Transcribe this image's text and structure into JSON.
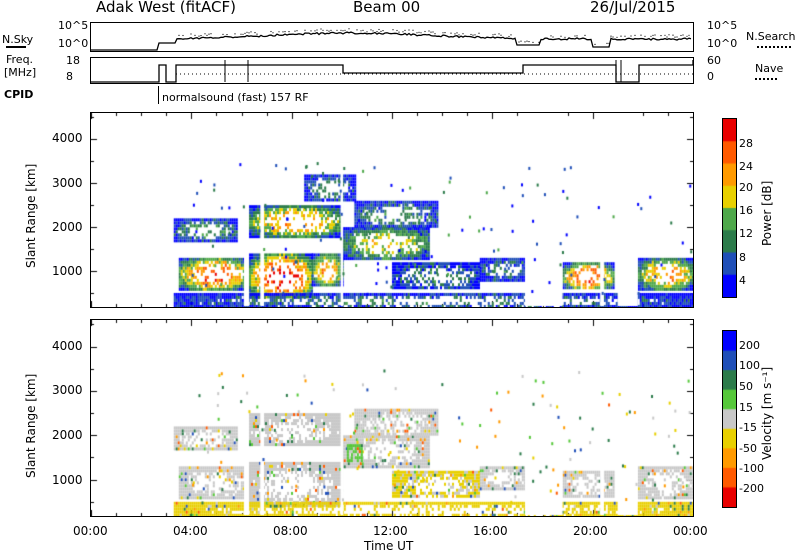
{
  "header": {
    "title": "Adak West (fitACF)",
    "beam": "Beam 00",
    "date": "26/Jul/2015"
  },
  "status_panels": {
    "nsky_label": "N.Sky",
    "nsky_ticks": [
      "10^5",
      "10^0"
    ],
    "nsearch_label": "N.Search",
    "nsearch_ticks": [
      "10^5",
      "10^0"
    ],
    "freq_label_1": "Freq.",
    "freq_label_2": "[MHz]",
    "freq_ticks": [
      "18",
      "8"
    ],
    "nave_label": "Nave",
    "nave_ticks": [
      "60",
      "0"
    ],
    "cpid_label": "CPID",
    "cpid_text": "normalsound (fast) 157 RF"
  },
  "chart_data": [
    {
      "type": "heatmap",
      "title": "",
      "xlabel": "Time UT",
      "ylabel": "Slant Range [km]",
      "x_ticks": [
        "00:00",
        "04:00",
        "08:00",
        "12:00",
        "16:00",
        "20:00",
        "00:00"
      ],
      "xlim": [
        0,
        24
      ],
      "y_ticks": [
        "1000",
        "2000",
        "3000",
        "4000"
      ],
      "ylim": [
        180,
        4600
      ],
      "colorbar": {
        "label": "Power [dB]",
        "ticks": [
          "4",
          "8",
          "12",
          "16",
          "20",
          "24",
          "28"
        ],
        "range": [
          0,
          32
        ],
        "colors": [
          "#0000ff",
          "#1f4fb8",
          "#2b7b4a",
          "#4ea84a",
          "#e8d000",
          "#ff9a00",
          "#ff5a00",
          "#e80000"
        ]
      },
      "blobs": [
        {
          "t0": 3.5,
          "t1": 6.3,
          "r0": 600,
          "r1": 1300,
          "v": 24
        },
        {
          "t0": 3.3,
          "t1": 5.8,
          "r0": 1700,
          "r1": 2200,
          "v": 10
        },
        {
          "t0": 6.3,
          "t1": 8.8,
          "r0": 400,
          "r1": 1400,
          "v": 26
        },
        {
          "t0": 8.8,
          "t1": 10.0,
          "r0": 700,
          "r1": 1400,
          "v": 20
        },
        {
          "t0": 6.3,
          "t1": 10.0,
          "r0": 1800,
          "r1": 2500,
          "v": 20
        },
        {
          "t0": 10.0,
          "t1": 13.5,
          "r0": 1300,
          "r1": 2000,
          "v": 16
        },
        {
          "t0": 10.5,
          "t1": 13.8,
          "r0": 2000,
          "r1": 2600,
          "v": 9
        },
        {
          "t0": 12.0,
          "t1": 15.5,
          "r0": 600,
          "r1": 1200,
          "v": 8
        },
        {
          "t0": 15.5,
          "t1": 17.3,
          "r0": 800,
          "r1": 1300,
          "v": 8
        },
        {
          "t0": 18.8,
          "t1": 20.8,
          "r0": 600,
          "r1": 1200,
          "v": 24
        },
        {
          "t0": 21.8,
          "t1": 24.0,
          "r0": 600,
          "r1": 1300,
          "v": 20
        },
        {
          "t0": 8.5,
          "t1": 10.5,
          "r0": 2600,
          "r1": 3200,
          "v": 8
        },
        {
          "t0": 3.3,
          "t1": 24.0,
          "r0": 180,
          "r1": 500,
          "v": 8
        }
      ]
    },
    {
      "type": "heatmap",
      "title": "",
      "xlabel": "Time UT",
      "ylabel": "Slant Range [km]",
      "x_ticks": [
        "00:00",
        "04:00",
        "08:00",
        "12:00",
        "16:00",
        "20:00",
        "00:00"
      ],
      "xlim": [
        0,
        24
      ],
      "y_ticks": [
        "1000",
        "2000",
        "3000",
        "4000"
      ],
      "ylim": [
        180,
        4600
      ],
      "colorbar": {
        "label": "Velocity [m s⁻¹]",
        "ticks": [
          "200",
          "100",
          "50",
          "15",
          "-15",
          "-50",
          "-100",
          "-200"
        ],
        "range": [
          -250,
          250
        ],
        "colors": [
          "#e80000",
          "#ff5a00",
          "#ff9a00",
          "#e8d000",
          "#c8c8c8",
          "#56c83a",
          "#2b7b4a",
          "#1f4fb8",
          "#0000ff"
        ]
      },
      "blobs": [
        {
          "t0": 3.5,
          "t1": 6.3,
          "r0": 600,
          "r1": 1300,
          "v": 0
        },
        {
          "t0": 3.3,
          "t1": 5.8,
          "r0": 1700,
          "r1": 2200,
          "v": 0
        },
        {
          "t0": 6.3,
          "t1": 10.0,
          "r0": 400,
          "r1": 1400,
          "v": 0
        },
        {
          "t0": 6.3,
          "t1": 10.0,
          "r0": 1800,
          "r1": 2500,
          "v": 0
        },
        {
          "t0": 10.0,
          "t1": 13.5,
          "r0": 1300,
          "r1": 2000,
          "v": 0
        },
        {
          "t0": 10.2,
          "t1": 10.8,
          "r0": 1400,
          "r1": 1800,
          "v": 40
        },
        {
          "t0": 10.5,
          "t1": 13.8,
          "r0": 2000,
          "r1": 2600,
          "v": 0
        },
        {
          "t0": 12.0,
          "t1": 15.5,
          "r0": 600,
          "r1": 1200,
          "v": -30
        },
        {
          "t0": 15.5,
          "t1": 17.3,
          "r0": 800,
          "r1": 1300,
          "v": 0
        },
        {
          "t0": 18.8,
          "t1": 20.8,
          "r0": 600,
          "r1": 1200,
          "v": 0
        },
        {
          "t0": 21.8,
          "t1": 24.0,
          "r0": 600,
          "r1": 1300,
          "v": 0
        },
        {
          "t0": 3.3,
          "t1": 24.0,
          "r0": 180,
          "r1": 500,
          "v": -60
        }
      ]
    }
  ]
}
